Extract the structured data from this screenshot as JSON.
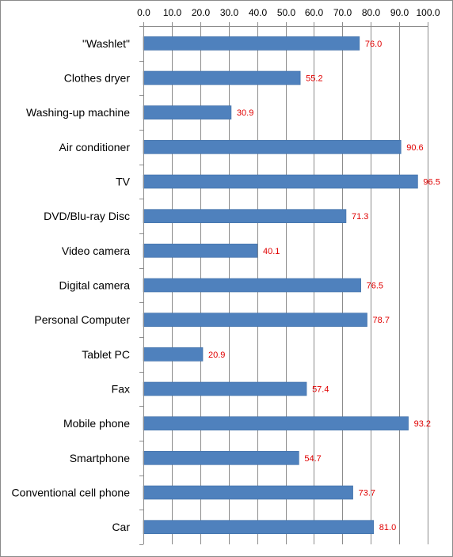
{
  "chart_data": {
    "type": "bar",
    "orientation": "horizontal",
    "title": "",
    "xlabel": "",
    "ylabel": "",
    "xlim": [
      0,
      100
    ],
    "x_ticks": [
      "0.0",
      "10.0",
      "20.0",
      "30.0",
      "40.0",
      "50.0",
      "60.0",
      "70.0",
      "80.0",
      "90.0",
      "100.0"
    ],
    "x_axis_position": "top",
    "grid": "vertical",
    "legend": "none",
    "bar_color": "#4F81BD",
    "data_label_color": "#E00000",
    "categories": [
      "\"Washlet\"",
      "Clothes dryer",
      "Washing-up machine",
      "Air conditioner",
      "TV",
      "DVD/Blu-ray Disc",
      "Video camera",
      "Digital camera",
      "Personal Computer",
      "Tablet PC",
      "Fax",
      "Mobile phone",
      "Smartphone",
      "Conventional cell phone",
      "Car"
    ],
    "values": [
      76.0,
      55.2,
      30.9,
      90.6,
      96.5,
      71.3,
      40.1,
      76.5,
      78.7,
      20.9,
      57.4,
      93.2,
      54.7,
      73.7,
      81.0
    ],
    "data_labels": [
      "76.0",
      "55.2",
      "30.9",
      "90.6",
      "96.5",
      "71.3",
      "40.1",
      "76.5",
      "78.7",
      "20.9",
      "57.4",
      "93.2",
      "54.7",
      "73.7",
      "81.0"
    ]
  }
}
